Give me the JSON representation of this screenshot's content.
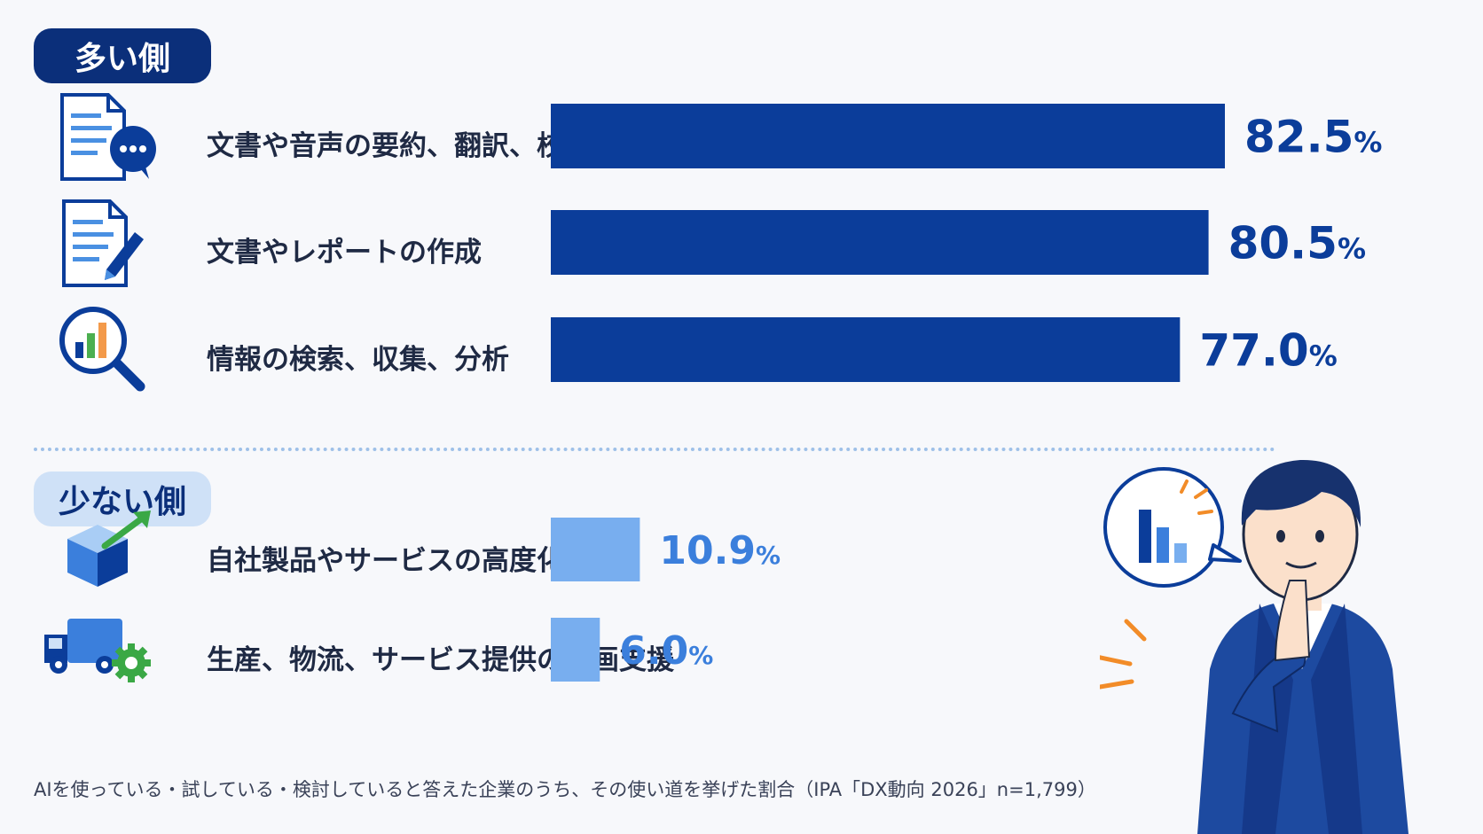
{
  "groups": {
    "high_label": "多い側",
    "low_label": "少ない側"
  },
  "chart_data": {
    "type": "bar",
    "orientation": "horizontal",
    "unit": "%",
    "xlim": [
      0,
      100
    ],
    "grid": false,
    "categories": [
      "文書や音声の要約、翻訳、校正",
      "文書やレポートの作成",
      "情報の検索、収集、分析",
      "自社製品やサービスの高度化",
      "生産、物流、サービス提供の計画支援"
    ],
    "values": [
      82.5,
      80.5,
      77.0,
      10.9,
      6.0
    ],
    "value_labels": [
      "82.5",
      "80.5",
      "77.0",
      "10.9",
      "6.0"
    ],
    "group_of_each": [
      "high",
      "high",
      "high",
      "low",
      "low"
    ],
    "icons": [
      "document-chat-icon",
      "document-pen-icon",
      "magnifier-chart-icon",
      "box-growth-icon",
      "truck-gear-icon"
    ]
  },
  "colors": {
    "high_bar": "#0b3d9a",
    "high_value_text": "#0b3d9a",
    "low_bar": "#78aeef",
    "low_value_text": "#3b7fdc",
    "high_badge": "#0b2f7a",
    "low_badge": "#cfe1f7"
  },
  "caption": "AIを使っている・試している・検討していると答えた企業のうち、その使い道を挙げた割合（IPA「DX動向 2026」n=1,799）"
}
